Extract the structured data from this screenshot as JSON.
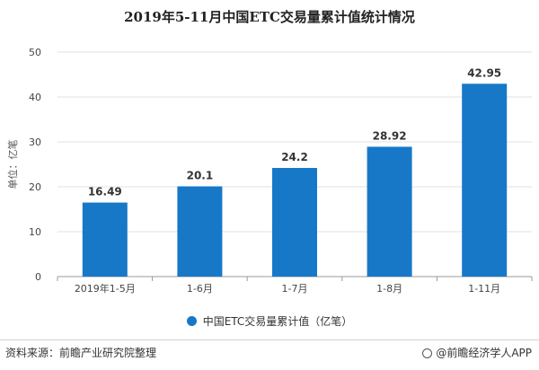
{
  "source_text": "资料来源：前瞻产业研究院整理",
  "brand_text": "@前瞻经济学人APP",
  "brand_icon": "circle-at-icon",
  "colors": {
    "bar": "#1878c8",
    "grid": "#e0e0e0",
    "axis": "#999999"
  },
  "chart_data": {
    "type": "bar",
    "title": "2019年5-11月中国ETC交易量累计值统计情况",
    "ylabel": "单位：亿笔",
    "xlabel": "",
    "categories": [
      "2019年1-5月",
      "1-6月",
      "1-7月",
      "1-8月",
      "1-11月"
    ],
    "series": [
      {
        "name": "中国ETC交易量累计值（亿笔）",
        "values": [
          16.49,
          20.1,
          24.2,
          28.92,
          42.95
        ]
      }
    ],
    "data_labels": [
      "16.49",
      "20.1",
      "24.2",
      "28.92",
      "42.95"
    ],
    "ylim": [
      0,
      50
    ],
    "yticks": [
      0,
      10,
      20,
      30,
      40,
      50
    ],
    "grid": true,
    "legend_position": "bottom"
  }
}
